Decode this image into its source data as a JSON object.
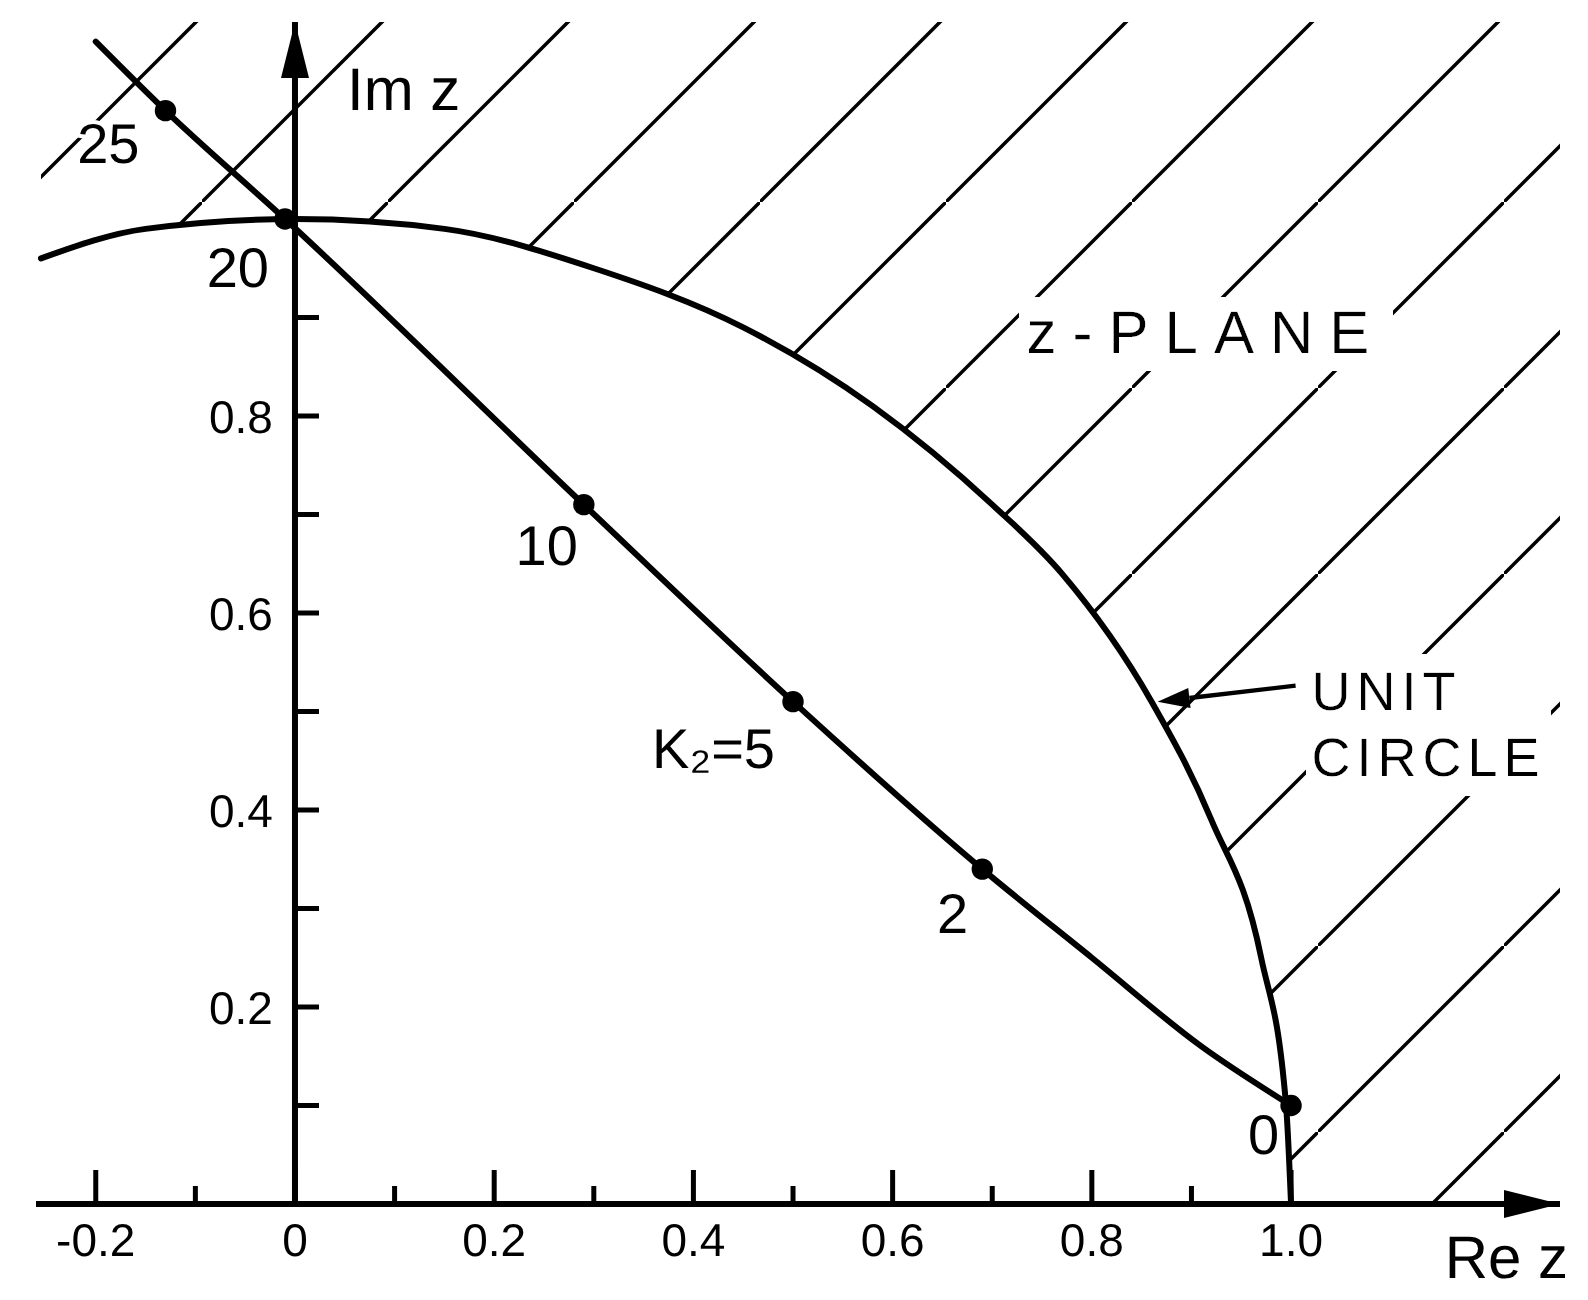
{
  "chart_data": {
    "type": "line",
    "xlabel": "Re z",
    "ylabel": "Im z",
    "xlim": [
      -0.26,
      1.27
    ],
    "ylim": [
      0,
      1.2
    ],
    "xticks": [
      -0.2,
      {
        "value": -0.1,
        "label": null
      },
      0,
      {
        "value": 0.1,
        "label": null
      },
      0.2,
      {
        "value": 0.3,
        "label": null
      },
      0.4,
      {
        "value": 0.5,
        "label": null
      },
      0.6,
      {
        "value": 0.7,
        "label": null
      },
      0.8,
      {
        "value": 0.9,
        "label": null
      },
      {
        "value": 1.0,
        "label": "1.0"
      }
    ],
    "yticks": [
      {
        "value": 0.1,
        "label": null
      },
      0.2,
      {
        "value": 0.3,
        "label": null
      },
      0.4,
      {
        "value": 0.5,
        "label": null
      },
      0.6,
      {
        "value": 0.7,
        "label": null
      },
      0.8,
      {
        "value": 0.9,
        "label": null
      }
    ],
    "line_style": "solid",
    "series": [
      {
        "type": "line",
        "color": "#000000",
        "marker": "none",
        "x": [
          -0.255,
          -0.15,
          0,
          0.15,
          0.3,
          0.45,
          0.58,
          0.7,
          0.77,
          0.86,
          0.92,
          0.97,
          0.995,
          1.0,
          1.27
        ],
        "values": [
          0.96,
          0.99,
          1.0,
          0.99,
          0.95,
          0.89,
          0.81,
          0.71,
          0.64,
          0.51,
          0.39,
          0.25,
          0.1,
          0.0,
          null
        ],
        "lower": [
          0.96,
          0.99,
          1.0,
          0.99,
          0.95,
          0.89,
          0.81,
          0.71,
          0.64,
          0.51,
          0.39,
          0.25,
          0.1,
          0.0,
          0.0
        ],
        "upper": [
          1.2,
          1.2,
          1.2,
          1.2,
          1.2,
          1.2,
          1.2,
          1.2,
          1.2,
          1.2,
          1.2,
          1.2,
          1.2,
          1.2,
          1.2
        ]
      },
      {
        "type": "line",
        "color": "#000000",
        "marker": "none",
        "x": [
          -0.2,
          -0.13,
          -0.01,
          0.29,
          0.5,
          0.69,
          0.8,
          0.91,
          1.0
        ],
        "values": [
          1.18,
          1.11,
          1.0,
          0.71,
          0.51,
          0.34,
          0.25,
          0.16,
          0.1
        ]
      },
      {
        "type": "scatter",
        "color": "#000000",
        "marker": "circle",
        "x": [
          -0.13,
          -0.01,
          0.29,
          0.5,
          0.69,
          1.0
        ],
        "values": [
          1.11,
          1.0,
          0.71,
          0.51,
          0.34,
          0.1
        ]
      }
    ],
    "annotations": [
      {
        "text": "25",
        "x": -0.13,
        "y": 1.11
      },
      {
        "text": "20",
        "x": -0.01,
        "y": 1.0
      },
      {
        "text": "10",
        "x": 0.29,
        "y": 0.71
      },
      {
        "text": "K₂=5",
        "x": 0.5,
        "y": 0.51
      },
      {
        "text": "2",
        "x": 0.69,
        "y": 0.34
      },
      {
        "text": "0",
        "x": 1.0,
        "y": 0.1
      },
      {
        "text": "UNIT CIRCLE",
        "x": 0.86,
        "y": 0.51
      },
      "z-PLANE"
    ]
  }
}
